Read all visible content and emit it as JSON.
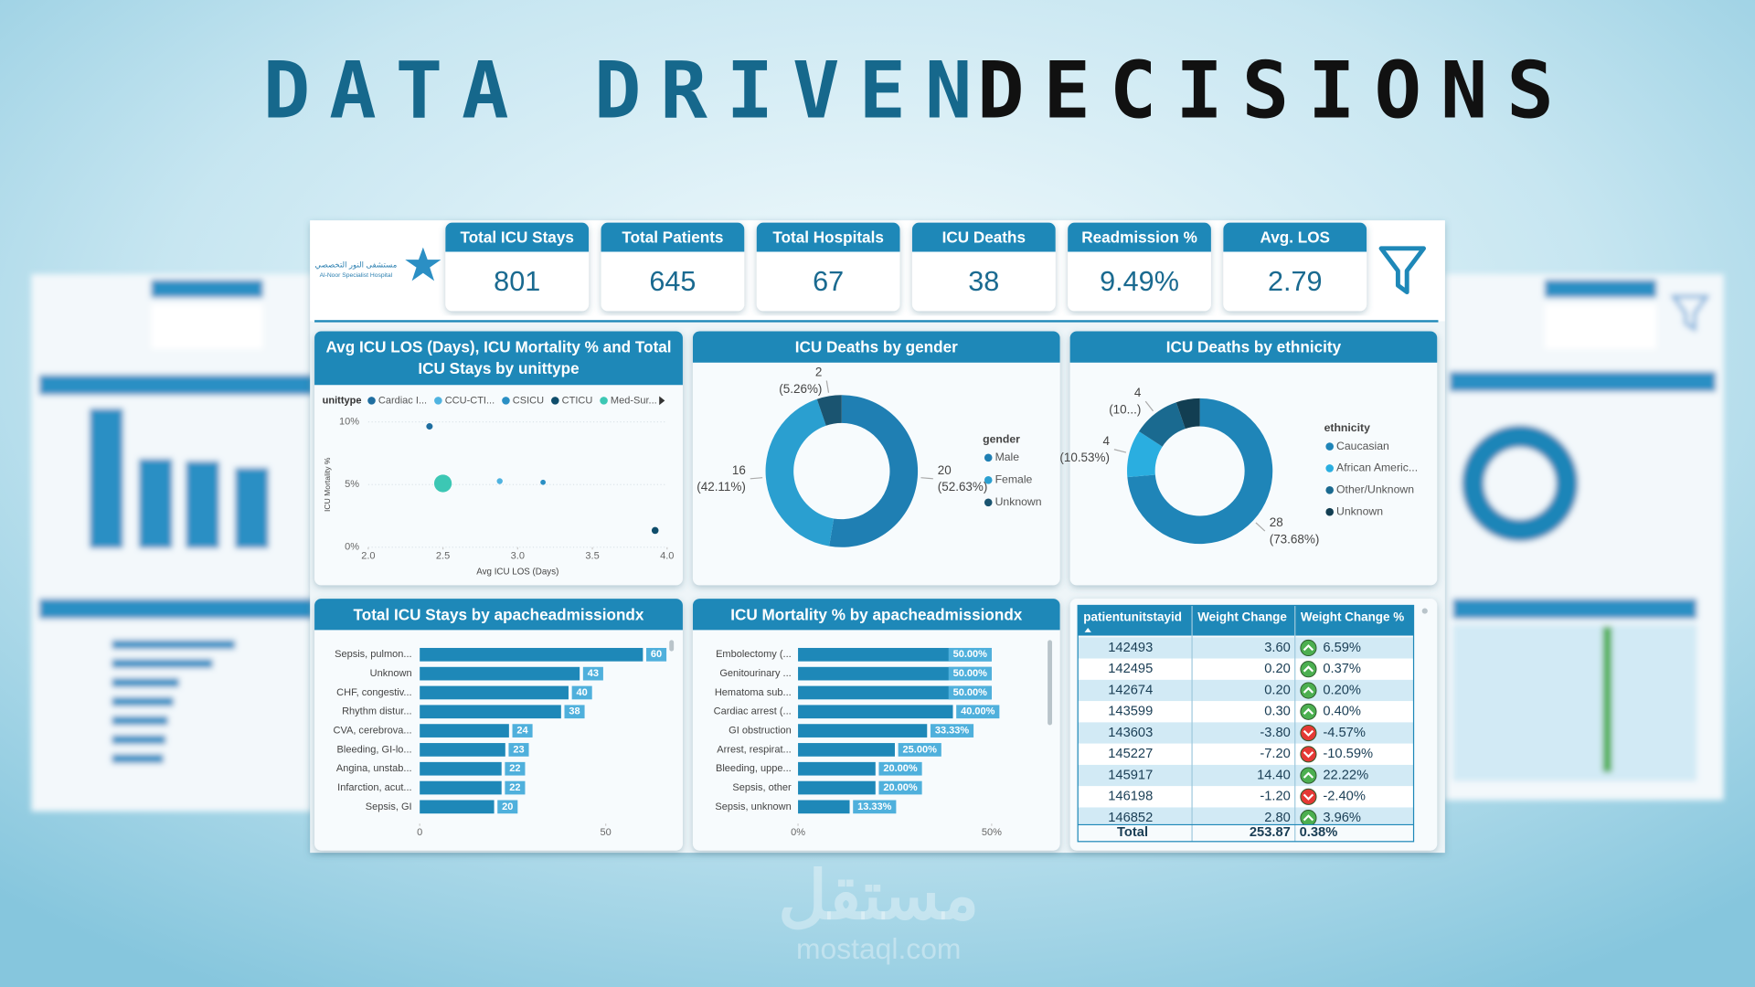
{
  "header": {
    "title_part1": "DATA DRIVEN",
    "title_part2": "DECISIONS",
    "logo_text_ar": "مستشفى النور التخصصي",
    "logo_text_en": "Al-Noor Specialist Hospital"
  },
  "kpis": [
    {
      "label": "Total ICU Stays",
      "value": "801"
    },
    {
      "label": "Total Patients",
      "value": "645"
    },
    {
      "label": "Total Hospitals",
      "value": "67"
    },
    {
      "label": "ICU Deaths",
      "value": "38"
    },
    {
      "label": "Readmission %",
      "value": "9.49%"
    },
    {
      "label": "Avg. LOS",
      "value": "2.79"
    }
  ],
  "chart_data": [
    {
      "type": "scatter",
      "title": "Avg ICU LOS (Days), ICU Mortality % and Total ICU Stays by unittype",
      "legend_title": "unittype",
      "x_label": "Avg ICU LOS (Days)",
      "y_label": "ICU Mortality %",
      "xlim": [
        2,
        4
      ],
      "xticks": [
        {
          "value": 2,
          "label": "2.0"
        },
        2.5,
        {
          "value": 3,
          "label": "3.0"
        },
        3.5,
        {
          "value": 4,
          "label": "4.0"
        }
      ],
      "ylim": [
        0,
        10
      ],
      "yticks": [
        {
          "value": 0,
          "label": "0%"
        },
        {
          "value": 5,
          "label": "5%"
        },
        {
          "value": 10,
          "label": "10%"
        }
      ],
      "grid": true,
      "series": [
        {
          "name": "Cardiac I...",
          "color": "#1f6ea0",
          "x": [
            2.41
          ],
          "values": [
            9.64
          ],
          "sizes": [
            60
          ]
        },
        {
          "name": "CCU-CTI...",
          "color": "#4fb3e0",
          "x": [
            2.88
          ],
          "values": [
            5.27
          ],
          "sizes": [
            50
          ]
        },
        {
          "name": "CSICU",
          "color": "#2a8fc4",
          "x": [
            3.17
          ],
          "values": [
            5.18
          ],
          "sizes": [
            40
          ]
        },
        {
          "name": "CTICU",
          "color": "#0f4d6b",
          "x": [
            3.92
          ],
          "values": [
            1.34
          ],
          "sizes": [
            70
          ]
        },
        {
          "name": "Med-Sur...",
          "color": "#3cc7b4",
          "x": [
            2.5
          ],
          "values": [
            5.09
          ],
          "sizes": [
            450
          ]
        }
      ]
    },
    {
      "type": "donut",
      "title": "ICU Deaths by gender",
      "legend_title": "gender",
      "categories": [
        "Male",
        "Female",
        "Unknown"
      ],
      "values": [
        20,
        16,
        2
      ],
      "percents": [
        52.63,
        42.11,
        5.26
      ],
      "percent_labels": [
        "(52.63%)",
        "(42.11%)",
        "(5.26%)"
      ],
      "colors": [
        "#1f7fb3",
        "#2a9fd0",
        "#1a5470"
      ]
    },
    {
      "type": "donut",
      "title": "ICU Deaths by ethnicity",
      "legend_title": "ethnicity",
      "categories": [
        "Caucasian",
        "African Americ...",
        "Other/Unknown",
        "Unknown"
      ],
      "values": [
        28,
        4,
        4,
        2
      ],
      "percents": [
        73.68,
        10.53,
        10.53,
        5.26
      ],
      "percent_labels": [
        "(73.68%)",
        "(10.53%)",
        "(10...)",
        null
      ],
      "colors": [
        "#1f85b8",
        "#2aaee0",
        "#1a6a90",
        "#123e52"
      ]
    },
    {
      "type": "hbar",
      "title": "Total ICU Stays by apacheadmissiondx",
      "categories": [
        "Sepsis, pulmon...",
        "Unknown",
        "CHF, congestiv...",
        "Rhythm distur...",
        "CVA, cerebrova...",
        "Bleeding, GI-lo...",
        "Angina, unstab...",
        "Infarction, acut...",
        "Sepsis, GI"
      ],
      "values": [
        60,
        43,
        40,
        38,
        24,
        23,
        22,
        22,
        20
      ],
      "color": "#1e88b8",
      "xlim": [
        0,
        68
      ],
      "xticks": [
        0,
        50
      ]
    },
    {
      "type": "hbar",
      "title": "ICU Mortality % by apacheadmissiondx",
      "categories": [
        "Embolectomy (...",
        "Genitourinary ...",
        "Hematoma sub...",
        "Cardiac arrest (...",
        "GI obstruction",
        "Arrest, respirat...",
        "Bleeding, uppe...",
        "Sepsis, other",
        "Sepsis, unknown"
      ],
      "values": [
        50,
        50,
        50,
        40,
        33.33,
        25,
        20,
        20,
        13.33
      ],
      "value_labels": [
        "50.00%",
        "50.00%",
        "50.00%",
        "40.00%",
        "33.33%",
        "25.00%",
        "20.00%",
        "20.00%",
        "13.33%"
      ],
      "color": "#1e88b8",
      "xlim": [
        0,
        62
      ],
      "xticks": [
        {
          "value": 0,
          "label": "0%"
        },
        {
          "value": 50,
          "label": "50%"
        }
      ]
    }
  ],
  "table": {
    "columns": [
      "patientunitstayid",
      "Weight Change",
      "Weight Change %"
    ],
    "rows": [
      [
        "142493",
        "3.60",
        "6.59%"
      ],
      [
        "142495",
        "0.20",
        "0.37%"
      ],
      [
        "142674",
        "0.20",
        "0.20%"
      ],
      [
        "143599",
        "0.30",
        "0.40%"
      ],
      [
        "143603",
        "-3.80",
        "-4.57%"
      ],
      [
        "145227",
        "-7.20",
        "-10.59%"
      ],
      [
        "145917",
        "14.40",
        "22.22%"
      ],
      [
        "146198",
        "-1.20",
        "-2.40%"
      ],
      [
        "146852",
        "2.80",
        "3.96%"
      ]
    ],
    "total": [
      "Total",
      "253.87",
      "0.38%"
    ]
  },
  "watermark": {
    "arabic": "مستقل",
    "latin": "mostaql.com"
  }
}
